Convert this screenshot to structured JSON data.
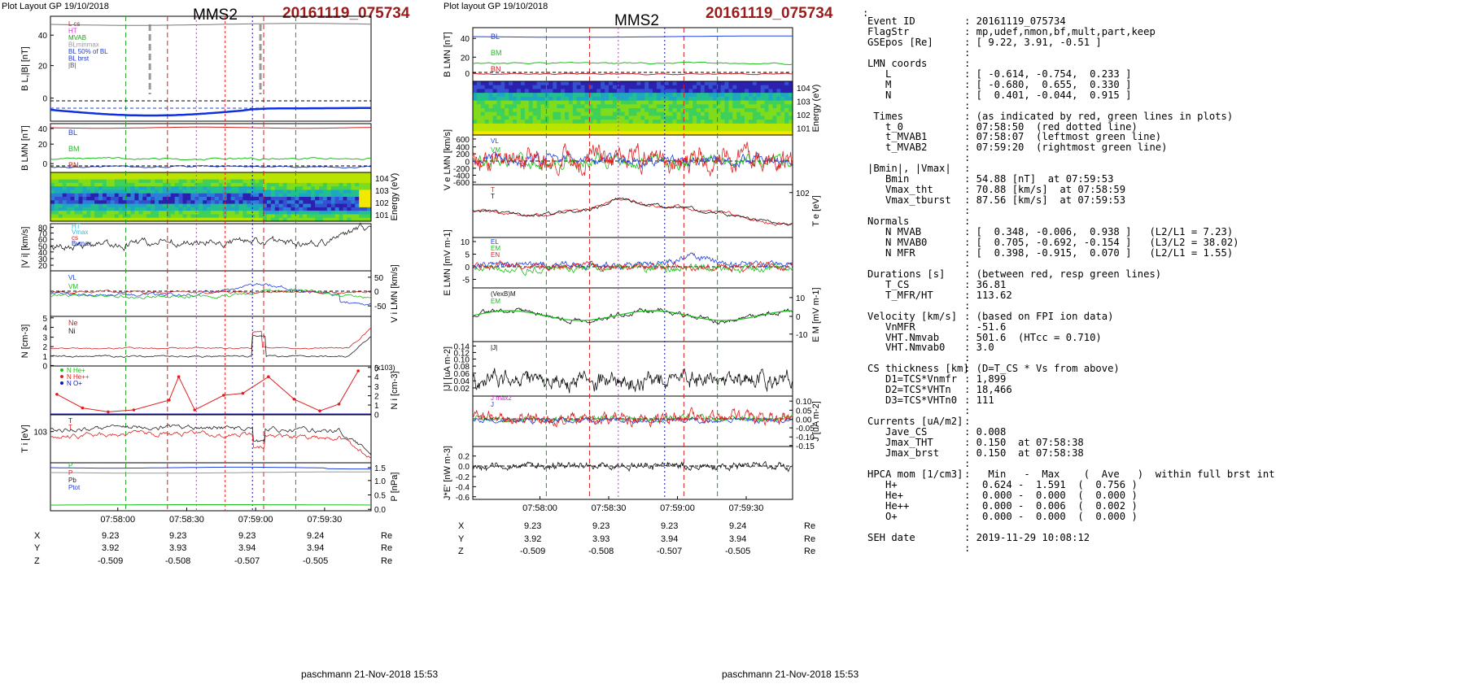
{
  "left_panel": {
    "header": "Plot Layout GP 19/10/2018",
    "spacecraft": "MMS2",
    "event": "20161119_075734",
    "footer": "paschmann 21-Nov-2018 15:53",
    "time_ticks": [
      "07:58:00",
      "07:58:30",
      "07:59:00",
      "07:59:30"
    ],
    "coords": {
      "X": [
        "9.23",
        "9.23",
        "9.23",
        "9.24"
      ],
      "Y": [
        "3.92",
        "3.93",
        "3.94",
        "3.94"
      ],
      "Z": [
        "-0.509",
        "-0.508",
        "-0.507",
        "-0.505"
      ],
      "unit": "Re"
    }
  },
  "right_panel": {
    "header": "Plot layout GP 19/10/2018",
    "spacecraft": "MMS2",
    "event": "20161119_075734",
    "footer": "paschmann 21-Nov-2018 15:53",
    "time_ticks": [
      "07:58:00",
      "07:58:30",
      "07:59:00",
      "07:59:30"
    ],
    "coords": {
      "X": [
        "9.23",
        "9.23",
        "9.23",
        "9.24"
      ],
      "Y": [
        "3.92",
        "3.93",
        "3.94",
        "3.94"
      ],
      "Z": [
        "-0.509",
        "-0.508",
        "-0.507",
        "-0.505"
      ],
      "unit": "Re"
    }
  },
  "chart_data": [
    {
      "type": "line",
      "name": "left-BL",
      "ylabel": "BL,|B| [nT]",
      "ylim": [
        -10,
        55
      ],
      "yticks": [
        "40",
        "20",
        "0"
      ],
      "legend": [
        "L cs",
        "HT",
        "MVAB",
        "BLminmax",
        "BL 50% of BL",
        "BL brst",
        "|B|"
      ]
    },
    {
      "type": "line",
      "name": "left-BLMN",
      "ylabel": "BLMN [nT]",
      "ylim": [
        -5,
        50
      ],
      "yticks": [
        "40",
        "20",
        "0"
      ],
      "legend": [
        "BL",
        "BM",
        "BN"
      ]
    },
    {
      "type": "heatmap",
      "name": "left-spec",
      "ylabel": "Energy (eV)",
      "yticks": [
        "10^4",
        "10^3",
        "10^2",
        "10^1"
      ]
    },
    {
      "type": "line",
      "name": "left-Vi",
      "ylabel": "|Vi| [km/s]",
      "ylim": [
        10,
        85
      ],
      "yticks": [
        "80",
        "70",
        "60",
        "50",
        "40",
        "30",
        "20"
      ],
      "legend": [
        "HT",
        "Vmax",
        "cs",
        "Bvmax"
      ]
    },
    {
      "type": "line",
      "name": "left-ViLMN",
      "ylabel": "Vi LMN [km/s]",
      "yticks": [
        "50",
        "0",
        "-50"
      ],
      "legend": [
        "VL",
        "VM"
      ]
    },
    {
      "type": "line",
      "name": "left-N",
      "ylabel": "N [cm-3]",
      "ylim": [
        0,
        5
      ],
      "yticks": [
        "5",
        "4",
        "3",
        "2",
        "1",
        "0"
      ],
      "legend": [
        "Ne",
        "Ni"
      ]
    },
    {
      "type": "line",
      "name": "left-Ni",
      "ylabel": "Ni [cm-3]",
      "ylim": [
        0,
        5
      ],
      "yticks": [
        "5",
        "4",
        "3",
        "2",
        "1",
        "0"
      ],
      "scale_label": "(x10-3)",
      "legend": [
        "N He+",
        "N He++",
        "N O+"
      ],
      "x": [
        0.02,
        0.1,
        0.18,
        0.26,
        0.37,
        0.4,
        0.45,
        0.54,
        0.6,
        0.68,
        0.76,
        0.84,
        0.9,
        0.96
      ],
      "series": [
        {
          "name": "N He++",
          "values": [
            2.1,
            0.7,
            0.3,
            0.5,
            1.5,
            3.9,
            0.5,
            2.0,
            2.2,
            3.9,
            1.6,
            0.4,
            1.1,
            4.5
          ]
        }
      ]
    },
    {
      "type": "line",
      "name": "left-Ti",
      "ylabel": "Ti [eV]",
      "yticks": [
        "10^3"
      ],
      "legend": [
        "T",
        "T"
      ]
    },
    {
      "type": "line",
      "name": "left-P",
      "ylabel": "P [nPa]",
      "ylim": [
        0,
        1.5
      ],
      "yticks": [
        "1.5",
        "1.0",
        "0.5",
        "0.0"
      ],
      "legend": [
        "P",
        "P",
        "Pb",
        "Ptot"
      ]
    },
    {
      "type": "line",
      "name": "right-BLMN",
      "ylabel": "BLMN [nT]",
      "yticks": [
        "40",
        "20",
        "0"
      ],
      "legend": [
        "BL",
        "BM",
        "BN"
      ]
    },
    {
      "type": "heatmap",
      "name": "right-spec",
      "ylabel": "Energy (eV)",
      "yticks": [
        "10^4",
        "10^3",
        "10^2",
        "10^1"
      ]
    },
    {
      "type": "line",
      "name": "right-Ve",
      "ylabel": "Ve LMN [km/s]",
      "yticks": [
        "600",
        "400",
        "200",
        "0",
        "-200",
        "-400",
        "-600"
      ],
      "legend": [
        "VL",
        "VM"
      ]
    },
    {
      "type": "line",
      "name": "right-Te",
      "ylabel": "Te [eV]",
      "yticks": [
        "10^2"
      ],
      "legend": [
        "T",
        "T"
      ]
    },
    {
      "type": "line",
      "name": "right-E",
      "ylabel": "ELMN [mV m-1]",
      "yticks": [
        "10",
        "5",
        "0",
        "-5"
      ],
      "legend": [
        "EL",
        "EM",
        "EN"
      ]
    },
    {
      "type": "line",
      "name": "right-EM",
      "ylabel": "EM [mV m-1]",
      "yticks": [
        "10",
        "0",
        "-10"
      ],
      "legend": [
        "(VexB)M",
        "EM"
      ]
    },
    {
      "type": "line",
      "name": "right-J",
      "ylabel": "|J| [uA m-2]",
      "yticks": [
        "0.14",
        "0.12",
        "0.10",
        "0.08",
        "0.06",
        "0.04",
        "0.02"
      ],
      "legend": [
        "|J|"
      ]
    },
    {
      "type": "line",
      "name": "right-JLMN",
      "ylabel": "J [uA m-2]",
      "yticks": [
        "0.10",
        "0.05",
        "0.00",
        "-0.05",
        "-0.10",
        "-0.15"
      ],
      "legend": [
        "J max2",
        "J"
      ]
    },
    {
      "type": "line",
      "name": "right-JE",
      "ylabel": "J*E' [nW m-3]",
      "yticks": [
        "0.2",
        "0.0",
        "-0.2",
        "-0.4",
        "-0.6"
      ]
    }
  ],
  "info": {
    "lead": ":",
    "rows": [
      {
        "k": "Event ID",
        "v": ": 20161119_075734"
      },
      {
        "k": "FlagStr",
        "v": ": mp,udef,nmon,bf,mult,part,keep"
      },
      {
        "k": "GSEpos [Re]",
        "v": ": [ 9.22, 3.91, -0.51 ]"
      },
      {
        "k": "",
        "v": ":"
      },
      {
        "k": "LMN coords",
        "v": ":"
      },
      {
        "k": "   L",
        "v": ": [ -0.614, -0.754,  0.233 ]"
      },
      {
        "k": "   M",
        "v": ": [ -0.680,  0.655,  0.330 ]"
      },
      {
        "k": "   N",
        "v": ": [  0.401, -0.044,  0.915 ]"
      },
      {
        "k": "",
        "v": ":"
      },
      {
        "k": " Times",
        "v": ": (as indicated by red, green lines in plots)"
      },
      {
        "k": "   t_0",
        "v": ": 07:58:50  (red dotted line)"
      },
      {
        "k": "   t_MVAB1",
        "v": ": 07:58:07  (leftmost green line)"
      },
      {
        "k": "   t_MVAB2",
        "v": ": 07:59:20  (rightmost green line)"
      },
      {
        "k": "",
        "v": ":"
      },
      {
        "k": "|Bmin|, |Vmax|",
        "v": ":"
      },
      {
        "k": "   Bmin",
        "v": ": 54.88 [nT]  at 07:59:53"
      },
      {
        "k": "   Vmax_tht",
        "v": ": 70.88 [km/s]  at 07:58:59"
      },
      {
        "k": "   Vmax_tburst",
        "v": ": 87.56 [km/s]  at 07:59:53"
      },
      {
        "k": "",
        "v": ":"
      },
      {
        "k": "Normals",
        "v": ":"
      },
      {
        "k": "   N MVAB",
        "v": ": [  0.348, -0.006,  0.938 ]   (L2/L1 = 7.23)"
      },
      {
        "k": "   N MVAB0",
        "v": ": [  0.705, -0.692, -0.154 ]   (L3/L2 = 38.02)"
      },
      {
        "k": "   N MFR",
        "v": ": [  0.398, -0.915,  0.070 ]   (L2/L1 = 1.55)"
      },
      {
        "k": "",
        "v": ":"
      },
      {
        "k": "Durations [s]",
        "v": ": (between red, resp green lines)"
      },
      {
        "k": "   T_CS",
        "v": ": 36.81"
      },
      {
        "k": "   T_MFR/HT",
        "v": ": 113.62"
      },
      {
        "k": "",
        "v": ":"
      },
      {
        "k": "Velocity [km/s]",
        "v": ": (based on FPI ion data)"
      },
      {
        "k": "   VnMFR",
        "v": ": -51.6"
      },
      {
        "k": "   VHT.Nmvab",
        "v": ": 501.6  (HTcc = 0.710)"
      },
      {
        "k": "   VHT.Nmvab0",
        "v": ": 3.0"
      },
      {
        "k": "",
        "v": ":"
      },
      {
        "k": "CS thickness [km]",
        "v": ": (D=T_CS * Vs from above)"
      },
      {
        "k": "   D1=TCS*Vnmfr",
        "v": ": 1,899"
      },
      {
        "k": "   D2=TCS*VHTn",
        "v": ": 18,466"
      },
      {
        "k": "   D3=TCS*VHTn0",
        "v": ": 111"
      },
      {
        "k": "",
        "v": ":"
      },
      {
        "k": "Currents [uA/m2]",
        "v": ":"
      },
      {
        "k": "   Jave_CS",
        "v": ": 0.008"
      },
      {
        "k": "   Jmax_THT",
        "v": ": 0.150  at 07:58:38"
      },
      {
        "k": "   Jmax_brst",
        "v": ": 0.150  at 07:58:38"
      },
      {
        "k": "",
        "v": ":"
      },
      {
        "k": "HPCA mom [1/cm3]",
        "v": ":   Min   -  Max    (  Ave   )  within full brst int"
      },
      {
        "k": "   H+",
        "v": ":  0.624 -  1.591  (  0.756 )"
      },
      {
        "k": "   He+",
        "v": ":  0.000 -  0.000  (  0.000 )"
      },
      {
        "k": "   He++",
        "v": ":  0.000 -  0.006  (  0.002 )"
      },
      {
        "k": "   O+",
        "v": ":  0.000 -  0.000  (  0.000 )"
      },
      {
        "k": "",
        "v": ":"
      },
      {
        "k": "SEH date",
        "v": ": 2019-11-29 10:08:12"
      },
      {
        "k": "",
        "v": ":"
      }
    ]
  }
}
